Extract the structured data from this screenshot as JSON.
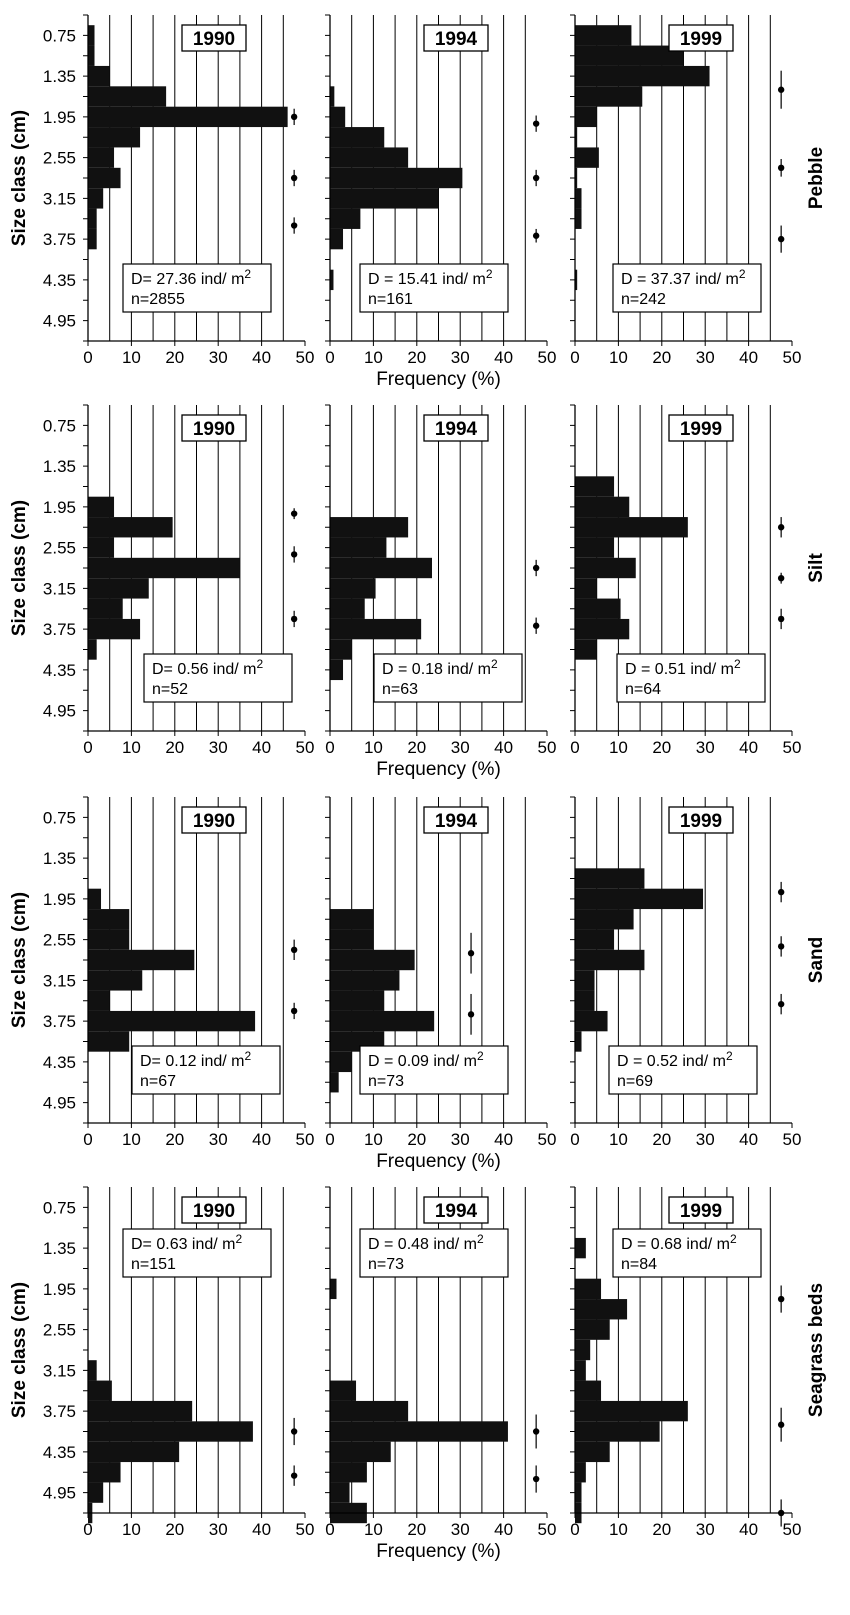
{
  "figure": {
    "ylabel": "Size class (cm)",
    "xlabel": "Frequency (%)",
    "size_classes": [
      "0.75",
      "1.35",
      "1.95",
      "2.55",
      "3.15",
      "3.75",
      "4.35",
      "4.95"
    ],
    "x_ticks": [
      0,
      10,
      20,
      30,
      40,
      50
    ],
    "habitats": [
      "Pebble",
      "Silt",
      "Sand",
      "Seagrass beds"
    ]
  },
  "chart_data": [
    {
      "type": "bar",
      "orientation": "horizontal",
      "habitat": "Pebble",
      "year": "1990",
      "density_text": "D= 27.36 ind/ m",
      "n_text": "n=2855",
      "xlabel": "Frequency (%)",
      "ylabel": "Size class (cm)",
      "xlim": [
        0,
        50
      ],
      "ylim": [
        0.45,
        5.25
      ],
      "bins": [
        {
          "y": 0.75,
          "v": 1.5
        },
        {
          "y": 1.05,
          "v": 1.5
        },
        {
          "y": 1.35,
          "v": 5
        },
        {
          "y": 1.65,
          "v": 18
        },
        {
          "y": 1.95,
          "v": 46
        },
        {
          "y": 2.25,
          "v": 12
        },
        {
          "y": 2.55,
          "v": 6
        },
        {
          "y": 2.85,
          "v": 7.5
        },
        {
          "y": 3.15,
          "v": 3.5
        },
        {
          "y": 3.45,
          "v": 2
        },
        {
          "y": 3.75,
          "v": 2
        }
      ],
      "ci": [
        {
          "y": 1.95,
          "lo": 1.83,
          "hi": 2.07
        },
        {
          "y": 2.85,
          "lo": 2.73,
          "hi": 2.97
        },
        {
          "y": 3.55,
          "lo": 3.43,
          "hi": 3.67
        }
      ]
    },
    {
      "type": "bar",
      "orientation": "horizontal",
      "habitat": "Pebble",
      "year": "1994",
      "density_text": "D = 15.41 ind/ m",
      "n_text": "n=161",
      "xlabel": "Frequency (%)",
      "ylabel": "Size class (cm)",
      "xlim": [
        0,
        50
      ],
      "ylim": [
        0.45,
        5.25
      ],
      "bins": [
        {
          "y": 1.65,
          "v": 1
        },
        {
          "y": 1.95,
          "v": 3.5
        },
        {
          "y": 2.25,
          "v": 12.5
        },
        {
          "y": 2.55,
          "v": 18
        },
        {
          "y": 2.85,
          "v": 30.5
        },
        {
          "y": 3.15,
          "v": 25
        },
        {
          "y": 3.45,
          "v": 7
        },
        {
          "y": 3.75,
          "v": 3
        },
        {
          "y": 4.35,
          "v": 0.8
        }
      ],
      "ci": [
        {
          "y": 2.05,
          "lo": 1.93,
          "hi": 2.17
        },
        {
          "y": 2.85,
          "lo": 2.73,
          "hi": 2.97
        },
        {
          "y": 3.7,
          "lo": 3.6,
          "hi": 3.8
        }
      ]
    },
    {
      "type": "bar",
      "orientation": "horizontal",
      "habitat": "Pebble",
      "year": "1999",
      "density_text": "D = 37.37 ind/ m",
      "n_text": "n=242",
      "xlabel": "Frequency (%)",
      "ylabel": "Size class (cm)",
      "xlim": [
        0,
        50
      ],
      "ylim": [
        0.45,
        5.25
      ],
      "bins": [
        {
          "y": 0.75,
          "v": 13
        },
        {
          "y": 1.05,
          "v": 25
        },
        {
          "y": 1.35,
          "v": 31
        },
        {
          "y": 1.65,
          "v": 15.5
        },
        {
          "y": 1.95,
          "v": 5
        },
        {
          "y": 2.25,
          "v": 0.5
        },
        {
          "y": 2.55,
          "v": 5.5
        },
        {
          "y": 2.85,
          "v": 0.5
        },
        {
          "y": 3.15,
          "v": 1.5
        },
        {
          "y": 3.45,
          "v": 1.5
        },
        {
          "y": 4.35,
          "v": 0.5
        }
      ],
      "ci": [
        {
          "y": 1.55,
          "lo": 1.27,
          "hi": 1.83
        },
        {
          "y": 2.7,
          "lo": 2.57,
          "hi": 2.83
        },
        {
          "y": 3.75,
          "lo": 3.55,
          "hi": 3.95
        }
      ]
    },
    {
      "type": "bar",
      "orientation": "horizontal",
      "habitat": "Silt",
      "year": "1990",
      "density_text": "D= 0.56 ind/ m",
      "n_text": "n=52",
      "xlabel": "Frequency (%)",
      "ylabel": "Size class (cm)",
      "xlim": [
        0,
        50
      ],
      "ylim": [
        0.45,
        5.25
      ],
      "bins": [
        {
          "y": 1.95,
          "v": 6
        },
        {
          "y": 2.25,
          "v": 19.5
        },
        {
          "y": 2.55,
          "v": 6
        },
        {
          "y": 2.85,
          "v": 35
        },
        {
          "y": 3.15,
          "v": 14
        },
        {
          "y": 3.45,
          "v": 8
        },
        {
          "y": 3.75,
          "v": 12
        },
        {
          "y": 4.05,
          "v": 2
        }
      ],
      "ci": [
        {
          "y": 2.05,
          "lo": 1.97,
          "hi": 2.13
        },
        {
          "y": 2.65,
          "lo": 2.53,
          "hi": 2.77
        },
        {
          "y": 3.6,
          "lo": 3.48,
          "hi": 3.72
        }
      ]
    },
    {
      "type": "bar",
      "orientation": "horizontal",
      "habitat": "Silt",
      "year": "1994",
      "density_text": "D = 0.18 ind/ m",
      "n_text": "n=63",
      "xlabel": "Frequency (%)",
      "ylabel": "Size class (cm)",
      "xlim": [
        0,
        50
      ],
      "ylim": [
        0.45,
        5.25
      ],
      "bins": [
        {
          "y": 2.25,
          "v": 18
        },
        {
          "y": 2.55,
          "v": 13
        },
        {
          "y": 2.85,
          "v": 23.5
        },
        {
          "y": 3.15,
          "v": 10.5
        },
        {
          "y": 3.45,
          "v": 8
        },
        {
          "y": 3.75,
          "v": 21
        },
        {
          "y": 4.05,
          "v": 5
        },
        {
          "y": 4.35,
          "v": 3
        }
      ],
      "ci": [
        {
          "y": 2.85,
          "lo": 2.73,
          "hi": 2.97
        },
        {
          "y": 3.7,
          "lo": 3.58,
          "hi": 3.82
        }
      ]
    },
    {
      "type": "bar",
      "orientation": "horizontal",
      "habitat": "Silt",
      "year": "1999",
      "density_text": "D = 0.51 ind/ m",
      "n_text": "n=64",
      "xlabel": "Frequency (%)",
      "ylabel": "Size class (cm)",
      "xlim": [
        0,
        50
      ],
      "ylim": [
        0.45,
        5.25
      ],
      "bins": [
        {
          "y": 1.65,
          "v": 9
        },
        {
          "y": 1.95,
          "v": 12.5
        },
        {
          "y": 2.25,
          "v": 26
        },
        {
          "y": 2.55,
          "v": 9
        },
        {
          "y": 2.85,
          "v": 14
        },
        {
          "y": 3.15,
          "v": 5
        },
        {
          "y": 3.45,
          "v": 10.5
        },
        {
          "y": 3.75,
          "v": 12.5
        },
        {
          "y": 4.05,
          "v": 5
        }
      ],
      "ci": [
        {
          "y": 2.25,
          "lo": 2.1,
          "hi": 2.4
        },
        {
          "y": 3.0,
          "lo": 2.92,
          "hi": 3.08
        },
        {
          "y": 3.6,
          "lo": 3.45,
          "hi": 3.75
        }
      ]
    },
    {
      "type": "bar",
      "orientation": "horizontal",
      "habitat": "Sand",
      "year": "1990",
      "density_text": "D= 0.12 ind/ m",
      "n_text": "n=67",
      "xlabel": "Frequency (%)",
      "ylabel": "Size class (cm)",
      "xlim": [
        0,
        50
      ],
      "ylim": [
        0.45,
        5.25
      ],
      "bins": [
        {
          "y": 1.95,
          "v": 3
        },
        {
          "y": 2.25,
          "v": 9.5
        },
        {
          "y": 2.55,
          "v": 9.5
        },
        {
          "y": 2.85,
          "v": 24.5
        },
        {
          "y": 3.15,
          "v": 12.5
        },
        {
          "y": 3.45,
          "v": 5
        },
        {
          "y": 3.75,
          "v": 38.5
        },
        {
          "y": 4.05,
          "v": 9.5
        }
      ],
      "ci": [
        {
          "y": 2.7,
          "lo": 2.55,
          "hi": 2.85
        },
        {
          "y": 3.6,
          "lo": 3.48,
          "hi": 3.72
        }
      ]
    },
    {
      "type": "bar",
      "orientation": "horizontal",
      "habitat": "Sand",
      "year": "1994",
      "density_text": "D = 0.09 ind/ m",
      "n_text": "n=73",
      "xlabel": "Frequency (%)",
      "ylabel": "Size class (cm)",
      "xlim": [
        0,
        50
      ],
      "ylim": [
        0.45,
        5.25
      ],
      "bins": [
        {
          "y": 2.25,
          "v": 10
        },
        {
          "y": 2.55,
          "v": 10
        },
        {
          "y": 2.85,
          "v": 19.5
        },
        {
          "y": 3.15,
          "v": 16
        },
        {
          "y": 3.45,
          "v": 12.5
        },
        {
          "y": 3.75,
          "v": 24
        },
        {
          "y": 4.05,
          "v": 12.5
        },
        {
          "y": 4.35,
          "v": 5
        },
        {
          "y": 4.65,
          "v": 2
        }
      ],
      "ci": [
        {
          "y": 2.75,
          "lo": 2.45,
          "hi": 3.05
        },
        {
          "y": 3.65,
          "lo": 3.35,
          "hi": 3.95
        }
      ]
    },
    {
      "type": "bar",
      "orientation": "horizontal",
      "habitat": "Sand",
      "year": "1999",
      "density_text": "D = 0.52 ind/ m",
      "n_text": "n=69",
      "xlabel": "Frequency (%)",
      "ylabel": "Size class (cm)",
      "xlim": [
        0,
        50
      ],
      "ylim": [
        0.45,
        5.25
      ],
      "bins": [
        {
          "y": 1.65,
          "v": 16
        },
        {
          "y": 1.95,
          "v": 29.5
        },
        {
          "y": 2.25,
          "v": 13.5
        },
        {
          "y": 2.55,
          "v": 9
        },
        {
          "y": 2.85,
          "v": 16
        },
        {
          "y": 3.15,
          "v": 4.5
        },
        {
          "y": 3.45,
          "v": 4.5
        },
        {
          "y": 3.75,
          "v": 7.5
        },
        {
          "y": 4.05,
          "v": 1.5
        }
      ],
      "ci": [
        {
          "y": 1.85,
          "lo": 1.7,
          "hi": 2.0
        },
        {
          "y": 2.65,
          "lo": 2.5,
          "hi": 2.8
        },
        {
          "y": 3.5,
          "lo": 3.35,
          "hi": 3.65
        }
      ]
    },
    {
      "type": "bar",
      "orientation": "horizontal",
      "habitat": "Seagrass beds",
      "year": "1990",
      "density_text": "D= 0.63 ind/ m",
      "n_text": "n=151",
      "xlabel": "Frequency (%)",
      "ylabel": "Size class (cm)",
      "xlim": [
        0,
        50
      ],
      "ylim": [
        0.45,
        5.25
      ],
      "bins": [
        {
          "y": 3.15,
          "v": 2
        },
        {
          "y": 3.45,
          "v": 5.5
        },
        {
          "y": 3.75,
          "v": 24
        },
        {
          "y": 4.05,
          "v": 38
        },
        {
          "y": 4.35,
          "v": 21
        },
        {
          "y": 4.65,
          "v": 7.5
        },
        {
          "y": 4.95,
          "v": 3.5
        },
        {
          "y": 5.25,
          "v": 1
        }
      ],
      "ci": [
        {
          "y": 4.05,
          "lo": 3.85,
          "hi": 4.25
        },
        {
          "y": 4.7,
          "lo": 4.55,
          "hi": 4.85
        }
      ]
    },
    {
      "type": "bar",
      "orientation": "horizontal",
      "habitat": "Seagrass beds",
      "year": "1994",
      "density_text": "D = 0.48 ind/ m",
      "n_text": "n=73",
      "xlabel": "Frequency (%)",
      "ylabel": "Size class (cm)",
      "xlim": [
        0,
        50
      ],
      "ylim": [
        0.45,
        5.25
      ],
      "bins": [
        {
          "y": 1.95,
          "v": 1.5
        },
        {
          "y": 3.45,
          "v": 6
        },
        {
          "y": 3.75,
          "v": 18
        },
        {
          "y": 4.05,
          "v": 41
        },
        {
          "y": 4.35,
          "v": 14
        },
        {
          "y": 4.65,
          "v": 8.5
        },
        {
          "y": 4.95,
          "v": 4.5
        },
        {
          "y": 5.25,
          "v": 8.5
        }
      ],
      "ci": [
        {
          "y": 4.05,
          "lo": 3.8,
          "hi": 4.3
        },
        {
          "y": 4.75,
          "lo": 4.55,
          "hi": 4.95
        }
      ]
    },
    {
      "type": "bar",
      "orientation": "horizontal",
      "habitat": "Seagrass beds",
      "year": "1999",
      "density_text": "D = 0.68 ind/ m",
      "n_text": "n=84",
      "xlabel": "Frequency (%)",
      "ylabel": "Size class (cm)",
      "xlim": [
        0,
        50
      ],
      "ylim": [
        0.45,
        5.25
      ],
      "bins": [
        {
          "y": 1.35,
          "v": 2.5
        },
        {
          "y": 1.95,
          "v": 6
        },
        {
          "y": 2.25,
          "v": 12
        },
        {
          "y": 2.55,
          "v": 8
        },
        {
          "y": 2.85,
          "v": 3.5
        },
        {
          "y": 3.15,
          "v": 2.5
        },
        {
          "y": 3.45,
          "v": 6
        },
        {
          "y": 3.75,
          "v": 26
        },
        {
          "y": 4.05,
          "v": 19.5
        },
        {
          "y": 4.35,
          "v": 8
        },
        {
          "y": 4.65,
          "v": 2.5
        },
        {
          "y": 4.95,
          "v": 1.5
        },
        {
          "y": 5.25,
          "v": 1.5
        }
      ],
      "ci": [
        {
          "y": 2.1,
          "lo": 1.9,
          "hi": 2.3
        },
        {
          "y": 3.95,
          "lo": 3.7,
          "hi": 4.2
        },
        {
          "y": 5.25,
          "lo": 5.05,
          "hi": 5.45
        }
      ]
    }
  ]
}
